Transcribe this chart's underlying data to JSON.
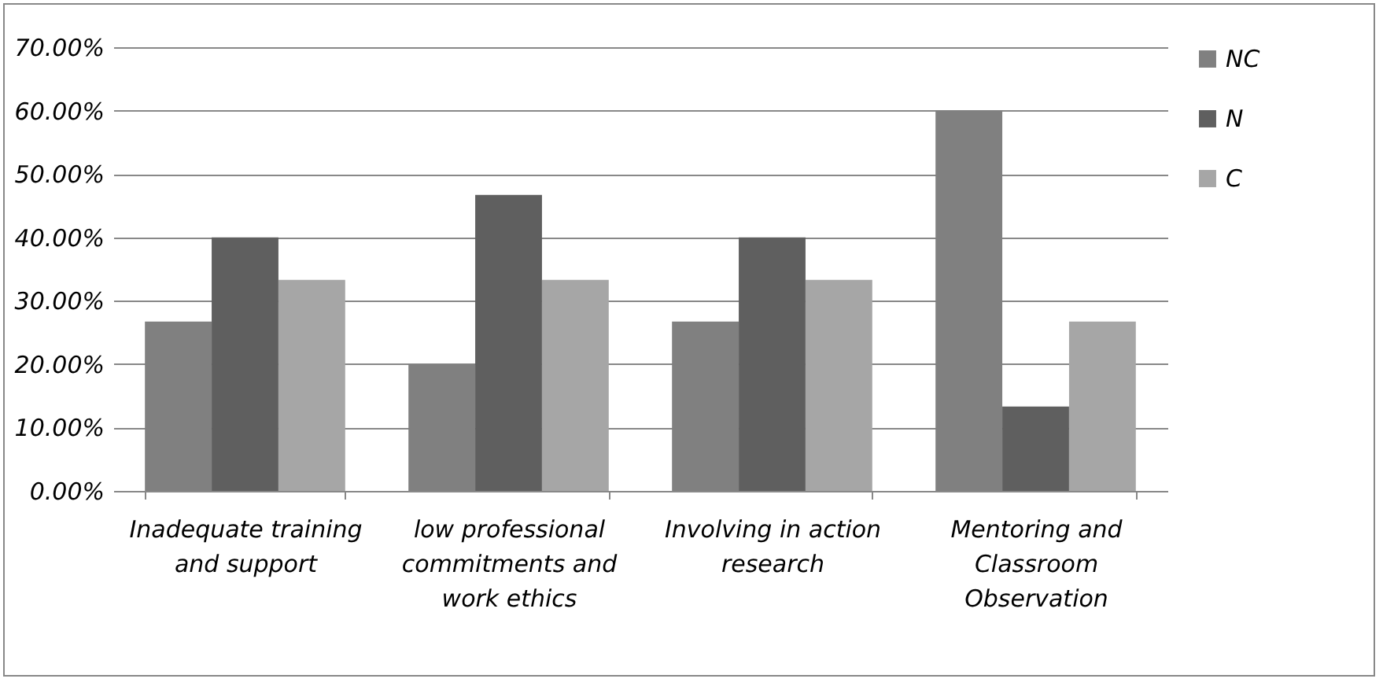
{
  "chart_data": {
    "type": "bar",
    "categories": [
      "Inadequate training and support",
      "low professional commitments and work ethics",
      "Involving in action research",
      "Mentoring and Classroom Observation"
    ],
    "series": [
      {
        "name": "NC",
        "color": "#808080",
        "values": [
          26.7,
          20,
          26.7,
          60
        ]
      },
      {
        "name": "N",
        "color": "#5f5f5f",
        "values": [
          40,
          46.7,
          40,
          13.3
        ]
      },
      {
        "name": "C",
        "color": "#a6a6a6",
        "values": [
          33.3,
          33.3,
          33.3,
          26.7
        ]
      }
    ],
    "ylim": [
      0,
      70
    ],
    "yticks": [
      {
        "value": 0,
        "label": "0.00%"
      },
      {
        "value": 10,
        "label": "10.00%"
      },
      {
        "value": 20,
        "label": "20.00%"
      },
      {
        "value": 30,
        "label": "30.00%"
      },
      {
        "value": 40,
        "label": "40.00%"
      },
      {
        "value": 50,
        "label": "50.00%"
      },
      {
        "value": 60,
        "label": "60.00%"
      },
      {
        "value": 70,
        "label": "70.00%"
      }
    ],
    "grid": "y",
    "legend": "right"
  }
}
